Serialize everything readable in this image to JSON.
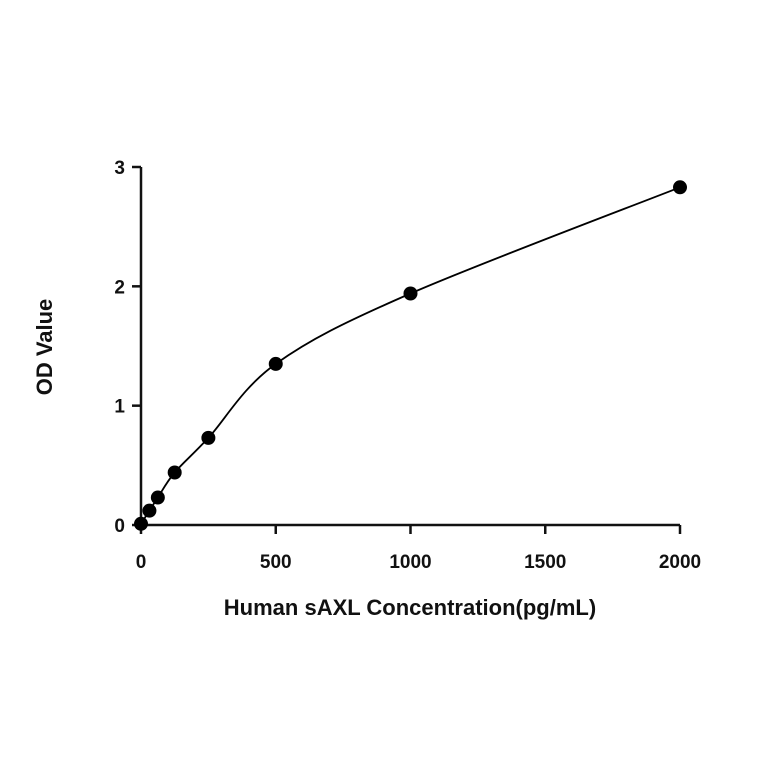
{
  "chart_data": {
    "type": "scatter",
    "title": "",
    "xlabel": "Human sAXL Concentration(pg/mL)",
    "ylabel": "OD Value",
    "xlim": [
      0,
      2000
    ],
    "ylim": [
      0,
      3
    ],
    "xticks": [
      0,
      500,
      1000,
      1500,
      2000
    ],
    "yticks": [
      0,
      1,
      2,
      3
    ],
    "grid": false,
    "series": [
      {
        "marker": "filled-circle",
        "color": "#000000",
        "x": [
          0,
          31.25,
          62.5,
          125,
          250,
          500,
          1000,
          2000
        ],
        "y": [
          0.01,
          0.12,
          0.23,
          0.44,
          0.73,
          1.35,
          1.94,
          2.83
        ]
      }
    ],
    "fit_curve": {
      "type": "smooth-fit",
      "color": "#000000",
      "x": [
        0,
        31.25,
        62.5,
        125,
        250,
        500,
        1000,
        2000
      ],
      "y": [
        0.01,
        0.12,
        0.23,
        0.44,
        0.73,
        1.35,
        1.94,
        2.83
      ]
    }
  }
}
